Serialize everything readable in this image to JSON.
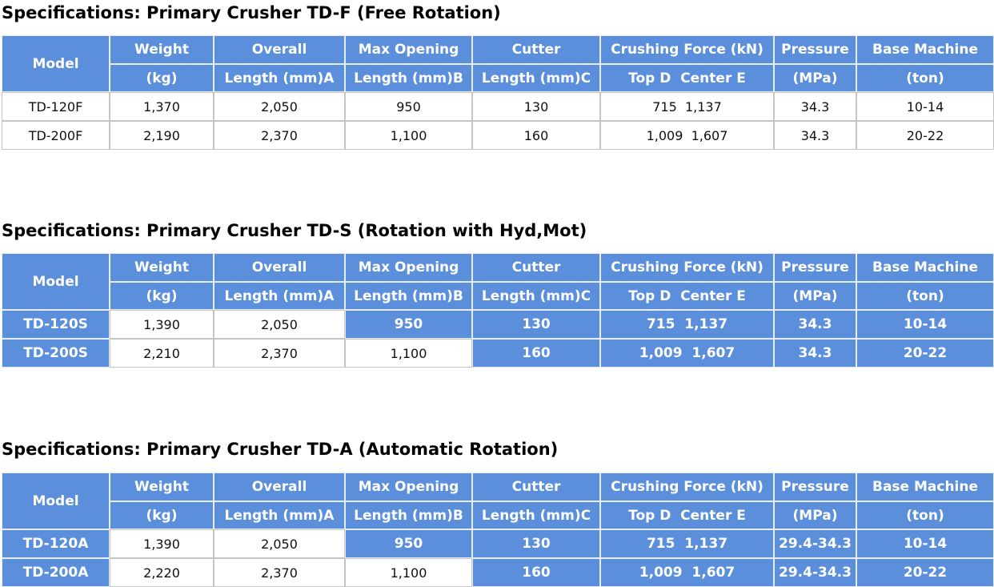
{
  "sections": [
    {
      "title": "Specifications: Primary Crusher TD-F (Free Rotation)",
      "header1": [
        "Model",
        "Weight",
        "Overall",
        "Max Opening",
        "Cutter",
        "Crushing Force (kN)",
        "Pressure",
        "Base Machine"
      ],
      "header2": [
        "(kg)",
        "Length (mm)A",
        "Length (mm)B",
        "Length (mm)C",
        "Top D  Center E",
        "(MPa)",
        "(ton)"
      ],
      "rows": [
        [
          "TD-120F",
          "1,370",
          "2,050",
          "950",
          "130",
          "715  1,137",
          "34.3",
          "10-14"
        ],
        [
          "TD-200F",
          "2,190",
          "2,370",
          "1,100",
          "160",
          "1,009  1,607",
          "34.3",
          "20-22"
        ]
      ]
    },
    {
      "title": "Specifications: Primary Crusher TD-S (Rotation with Hyd,Mot)",
      "header1": [
        "Model",
        "Weight",
        "Overall",
        "Max Opening",
        "Cutter",
        "Crushing Force (kN)",
        "Pressure",
        "Base Machine"
      ],
      "header2": [
        "(kg)",
        "Length (mm)A",
        "Length (mm)B",
        "Length (mm)C",
        "Top D  Center E",
        "(MPa)",
        "(ton)"
      ],
      "rows": [
        [
          "TD-120S",
          "1,390",
          "2,050",
          "950",
          "130",
          "715  1,137",
          "34.3",
          "10-14"
        ],
        [
          "TD-200S",
          "2,210",
          "2,370",
          "1,100",
          "160",
          "1,009  1,607",
          "34.3",
          "20-22"
        ]
      ]
    },
    {
      "title": "Specifications: Primary Crusher TD-A (Automatic Rotation)",
      "header1": [
        "Model",
        "Weight",
        "Overall",
        "Max Opening",
        "Cutter",
        "Crushing Force (kN)",
        "Pressure",
        "Base Machine"
      ],
      "header2": [
        "(kg)",
        "Length (mm)A",
        "Length (mm)B",
        "Length (mm)C",
        "Top D  Center E",
        "(MPa)",
        "(ton)"
      ],
      "rows": [
        [
          "TD-120A",
          "1,390",
          "2,050",
          "950",
          "130",
          "715  1,137",
          "29.4-34.3",
          "10-14"
        ],
        [
          "TD-200A",
          "2,220",
          "2,370",
          "1,100",
          "160",
          "1,009  1,607",
          "29.4-34.3",
          "20-22"
        ]
      ]
    }
  ]
}
